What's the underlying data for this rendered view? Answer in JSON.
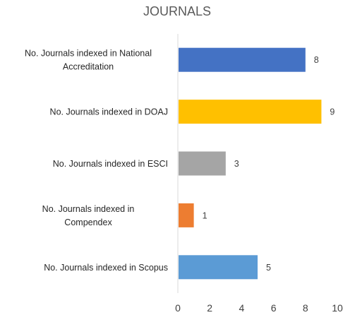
{
  "chart_data": {
    "type": "bar",
    "orientation": "horizontal",
    "title": "JOURNALS",
    "xlabel": "",
    "ylabel": "",
    "categories": [
      [
        "No. Journals indexed in National",
        "Accreditation"
      ],
      [
        "No. Journals indexed in DOAJ"
      ],
      [
        "No. Journals indexed in ESCI"
      ],
      [
        "No. Journals indexed in",
        "Compendex"
      ],
      [
        "No. Journals indexed in Scopus"
      ]
    ],
    "values": [
      8,
      9,
      3,
      1,
      5
    ],
    "colors": [
      "#4472C4",
      "#FFC000",
      "#A5A5A5",
      "#ED7D31",
      "#5B9BD5"
    ],
    "xlim": [
      0,
      10
    ],
    "x_ticks": [
      0,
      2,
      4,
      6,
      8,
      10
    ],
    "grid": false,
    "legend": "none",
    "data_labels": true
  }
}
